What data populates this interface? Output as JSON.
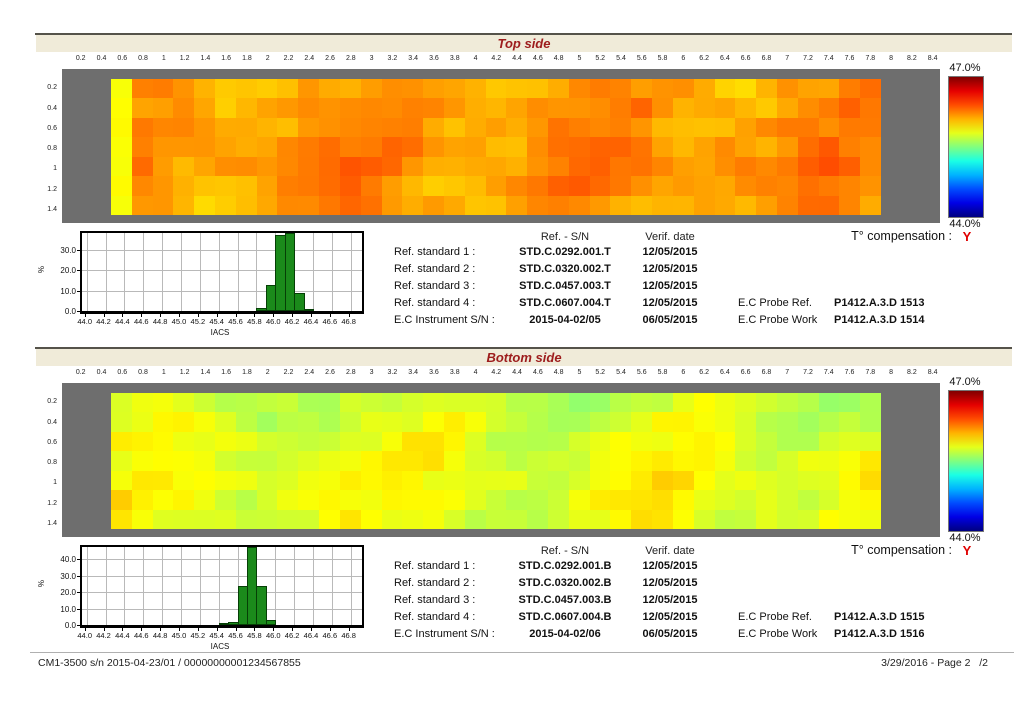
{
  "report": {
    "footer_left": "CM1-3500 s/n 2015-04-23/01 / 00000000001234567855",
    "footer_right": "3/29/2016 - Page 2   /2"
  },
  "colors": {
    "banner_bg": "#f0ebd9",
    "title_red": "#9d1c1c",
    "panel_gray": "#6e6e6e",
    "histogram_green": "#1b8a1b",
    "compensation_red": "#e00000"
  },
  "sections": [
    {
      "title": "Top side",
      "temp_comp_label": "T° compensation :",
      "temp_comp_value": "Y",
      "colorbar": {
        "max_label": "47.0%",
        "min_label": "44.0%",
        "range_pct": [
          44.0,
          47.0
        ]
      },
      "table": {
        "header_sn": "Ref. - S/N",
        "header_date": "Verif. date",
        "rows": [
          {
            "label": "Ref. standard 1 :",
            "sn": "STD.C.0292.001.T",
            "date": "12/05/2015"
          },
          {
            "label": "Ref. standard 2 :",
            "sn": "STD.C.0320.002.T",
            "date": "12/05/2015"
          },
          {
            "label": "Ref. standard 3 :",
            "sn": "STD.C.0457.003.T",
            "date": "12/05/2015"
          },
          {
            "label": "Ref. standard 4 :",
            "sn": "STD.C.0607.004.T",
            "date": "12/05/2015"
          },
          {
            "label": "E.C Instrument S/N :",
            "sn": "2015-04-02/05",
            "date": "06/05/2015"
          }
        ],
        "probe_ref_label": "E.C Probe Ref.",
        "probe_ref_value": "P1412.A.3.D 1513",
        "probe_work_label": "E.C Probe Work",
        "probe_work_value": "P1412.A.3.D 1514"
      }
    },
    {
      "title": "Bottom side",
      "temp_comp_label": "T° compensation :",
      "temp_comp_value": "Y",
      "colorbar": {
        "max_label": "47.0%",
        "min_label": "44.0%",
        "range_pct": [
          44.0,
          47.0
        ]
      },
      "table": {
        "header_sn": "Ref. - S/N",
        "header_date": "Verif. date",
        "rows": [
          {
            "label": "Ref. standard 1 :",
            "sn": "STD.C.0292.001.B",
            "date": "12/05/2015"
          },
          {
            "label": "Ref. standard 2 :",
            "sn": "STD.C.0320.002.B",
            "date": "12/05/2015"
          },
          {
            "label": "Ref. standard 3 :",
            "sn": "STD.C.0457.003.B",
            "date": "12/05/2015"
          },
          {
            "label": "Ref. standard 4 :",
            "sn": "STD.C.0607.004.B",
            "date": "12/05/2015"
          },
          {
            "label": "E.C Instrument S/N :",
            "sn": "2015-04-02/06",
            "date": "06/05/2015"
          }
        ],
        "probe_ref_label": "E.C Probe Ref.",
        "probe_ref_value": "P1412.A.3.D 1515",
        "probe_work_label": "E.C Probe Work",
        "probe_work_value": "P1412.A.3.D 1516"
      }
    }
  ],
  "chart_data": [
    {
      "type": "heatmap",
      "section": "Top side",
      "x_ticks": [
        "0.2",
        "0.4",
        "0.6",
        "0.8",
        "1",
        "1.2",
        "1.4",
        "1.6",
        "1.8",
        "2",
        "2.2",
        "2.4",
        "2.6",
        "2.8",
        "3",
        "3.2",
        "3.4",
        "3.6",
        "3.8",
        "4",
        "4.2",
        "4.4",
        "4.6",
        "4.8",
        "5",
        "5.2",
        "5.4",
        "5.6",
        "5.8",
        "6",
        "6.2",
        "6.4",
        "6.6",
        "6.8",
        "7",
        "7.2",
        "7.4",
        "7.6",
        "7.8",
        "8",
        "8.2",
        "8.4"
      ],
      "y_ticks": [
        "0.2",
        "0.4",
        "0.6",
        "0.8",
        "1",
        "1.2",
        "1.4"
      ],
      "colorbar_max": 47.0,
      "colorbar_min": 44.0,
      "units": "% IACS",
      "rows": 7,
      "cols": 37,
      "mean": 46.17,
      "col_wave_amp": 0.1,
      "col_wave_freq": 0.55,
      "col_wave_phase": 1.2,
      "jitter": 0.12,
      "row_bias": [
        -0.04,
        -0.01,
        0.01,
        0.03,
        0.05,
        0.02,
        0.0
      ],
      "left_edge_value": 45.86,
      "seed": 20150402
    },
    {
      "type": "histogram",
      "section": "Top side",
      "xlabel": "IACS",
      "ylabel": "%",
      "x_tick_labels": [
        "44.0",
        "44.2",
        "44.4",
        "44.6",
        "44.8",
        "45.0",
        "45.2",
        "45.4",
        "45.6",
        "45.8",
        "46.0",
        "46.2",
        "46.4",
        "46.6",
        "46.8"
      ],
      "y_tick_values": [
        0,
        10,
        20,
        30
      ],
      "xlim": [
        43.95,
        46.92
      ],
      "ylim": [
        0,
        38.5
      ],
      "bin_width": 0.1,
      "bins": [
        {
          "x": 45.8,
          "pct": 1.5
        },
        {
          "x": 45.9,
          "pct": 13.0
        },
        {
          "x": 46.0,
          "pct": 37.5
        },
        {
          "x": 46.1,
          "pct": 38.5
        },
        {
          "x": 46.2,
          "pct": 9.0
        },
        {
          "x": 46.3,
          "pct": 0.7
        }
      ]
    },
    {
      "type": "heatmap",
      "section": "Bottom side",
      "x_ticks": [
        "0.2",
        "0.4",
        "0.6",
        "0.8",
        "1",
        "1.2",
        "1.4",
        "1.6",
        "1.8",
        "2",
        "2.2",
        "2.4",
        "2.6",
        "2.8",
        "3",
        "3.2",
        "3.4",
        "3.6",
        "3.8",
        "4",
        "4.2",
        "4.4",
        "4.6",
        "4.8",
        "5",
        "5.2",
        "5.4",
        "5.6",
        "5.8",
        "6",
        "6.2",
        "6.4",
        "6.6",
        "6.8",
        "7",
        "7.2",
        "7.4",
        "7.6",
        "7.8",
        "8",
        "8.2",
        "8.4"
      ],
      "y_ticks": [
        "0.2",
        "0.4",
        "0.6",
        "0.8",
        "1",
        "1.2",
        "1.4"
      ],
      "colorbar_max": 47.0,
      "colorbar_min": 44.0,
      "units": "% IACS",
      "rows": 7,
      "cols": 37,
      "mean": 45.8,
      "col_wave_amp": 0.09,
      "col_wave_freq": 0.5,
      "col_wave_phase": 0.5,
      "jitter": 0.11,
      "row_bias": [
        -0.09,
        -0.05,
        -0.01,
        0.02,
        0.05,
        0.03,
        0.01
      ],
      "left_edge_value": null,
      "seed": 20150406
    },
    {
      "type": "histogram",
      "section": "Bottom side",
      "xlabel": "IACS",
      "ylabel": "%",
      "x_tick_labels": [
        "44.0",
        "44.2",
        "44.4",
        "44.6",
        "44.8",
        "45.0",
        "45.2",
        "45.4",
        "45.6",
        "45.8",
        "46.0",
        "46.2",
        "46.4",
        "46.6",
        "46.8"
      ],
      "y_tick_values": [
        0,
        10,
        20,
        30,
        40
      ],
      "xlim": [
        43.95,
        46.92
      ],
      "ylim": [
        0,
        47.5
      ],
      "bin_width": 0.1,
      "bins": [
        {
          "x": 45.4,
          "pct": 0.4
        },
        {
          "x": 45.5,
          "pct": 2.0
        },
        {
          "x": 45.6,
          "pct": 24.0
        },
        {
          "x": 45.7,
          "pct": 47.5
        },
        {
          "x": 45.8,
          "pct": 23.5
        },
        {
          "x": 45.9,
          "pct": 3.0
        }
      ]
    }
  ]
}
